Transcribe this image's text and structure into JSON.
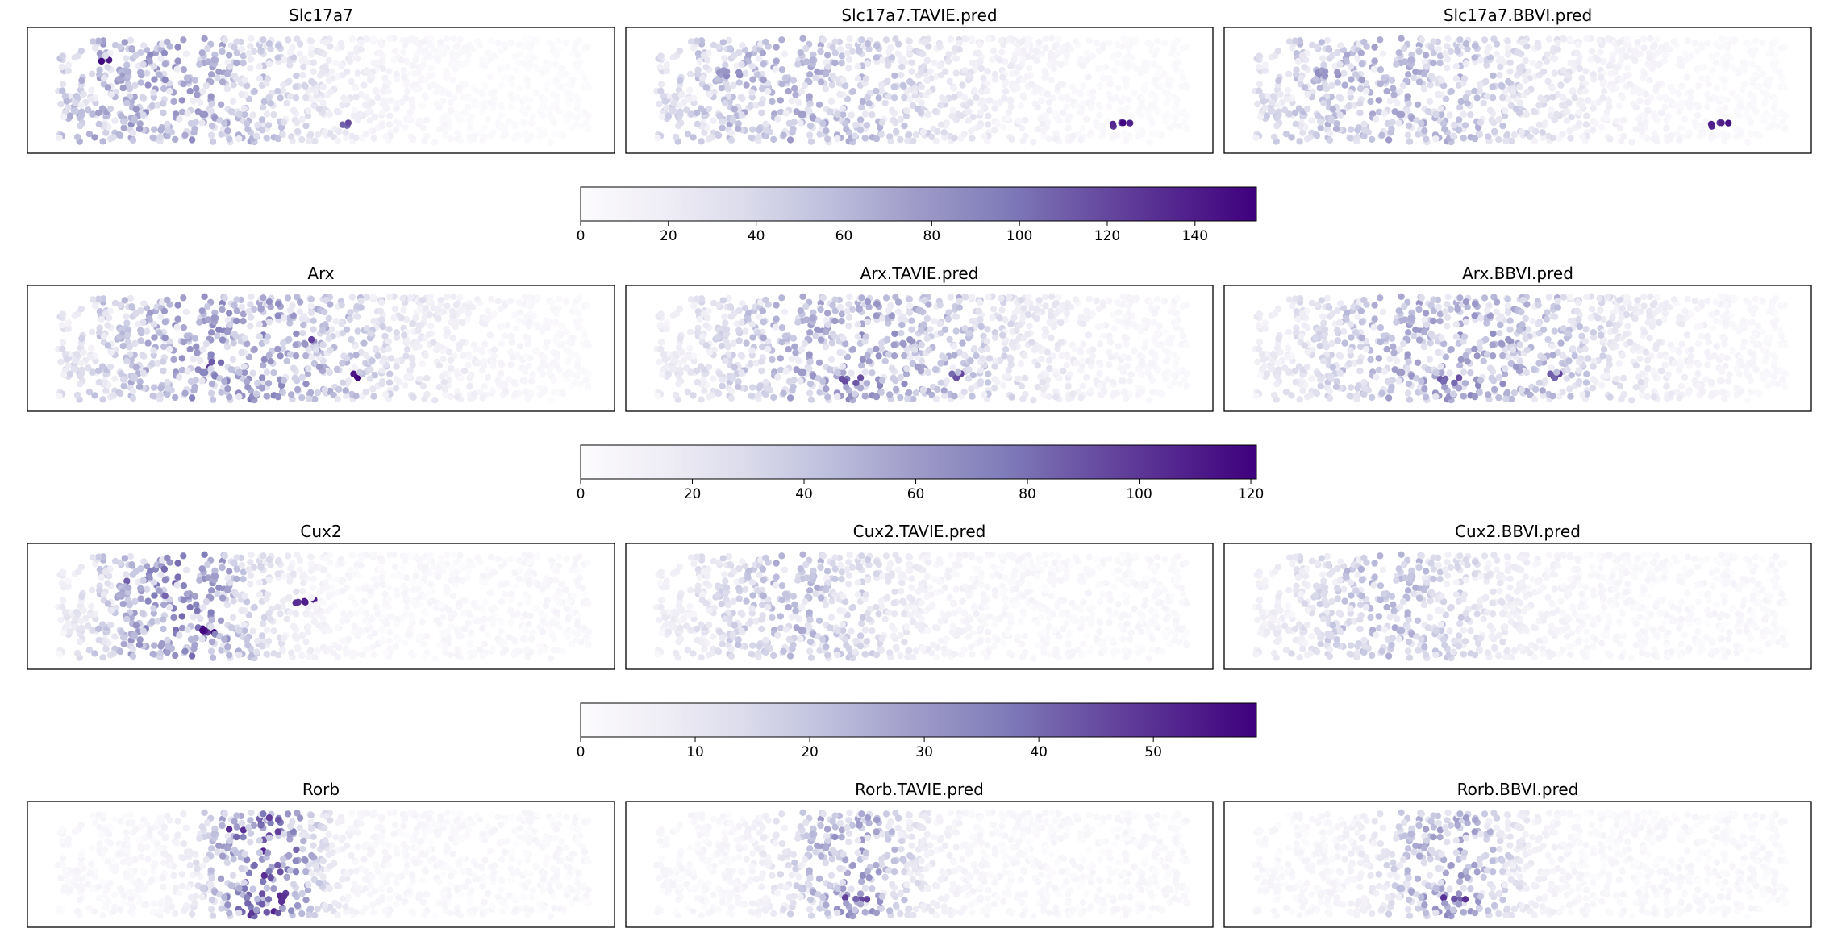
{
  "chart_data": {
    "type": "scatter",
    "colormap": "Purples",
    "colormap_stops": [
      "#fcfbfd",
      "#efedf5",
      "#dadaeb",
      "#bcbddc",
      "#9e9ac8",
      "#807dba",
      "#6a51a3",
      "#54278f",
      "#3f007d"
    ],
    "rows": [
      {
        "gene": "Slc17a7",
        "titles": [
          "Slc17a7",
          "Slc17a7.TAVIE.pred",
          "Slc17a7.BBVI.pred"
        ],
        "colorbar": {
          "vmin": 0,
          "vmax": 154,
          "ticks": [
            0,
            20,
            40,
            60,
            80,
            100,
            120,
            140
          ]
        },
        "expression_profile": {
          "observed": {
            "peak_x": 0.22,
            "width": 0.3,
            "amp": 65,
            "hotspots": [
              [
                0.14,
                0.25,
                150
              ],
              [
                0.55,
                0.8,
                120
              ],
              [
                0.95,
                0.95,
                70
              ]
            ]
          },
          "pred": {
            "peak_x": 0.28,
            "width": 0.34,
            "amp": 55,
            "hotspots": [
              [
                0.85,
                0.8,
                154
              ],
              [
                0.16,
                0.35,
                90
              ]
            ]
          }
        }
      },
      {
        "gene": "Arx",
        "titles": [
          "Arx",
          "Arx.TAVIE.pred",
          "Arx.BBVI.pred"
        ],
        "colorbar": {
          "vmin": 0,
          "vmax": 121,
          "ticks": [
            0,
            20,
            40,
            60,
            80,
            100,
            120
          ]
        },
        "expression_profile": {
          "observed": {
            "peak_x": 0.35,
            "width": 0.32,
            "amp": 55,
            "hotspots": [
              [
                0.54,
                0.75,
                121
              ],
              [
                0.47,
                0.4,
                110
              ],
              [
                0.31,
                0.65,
                100
              ]
            ]
          },
          "pred": {
            "peak_x": 0.4,
            "width": 0.32,
            "amp": 50,
            "hotspots": [
              [
                0.56,
                0.75,
                100
              ],
              [
                0.38,
                0.78,
                95
              ]
            ]
          }
        }
      },
      {
        "gene": "Cux2",
        "titles": [
          "Cux2",
          "Cux2.TAVIE.pred",
          "Cux2.BBVI.pred"
        ],
        "colorbar": {
          "vmin": 0,
          "vmax": 59,
          "ticks": [
            0,
            10,
            20,
            30,
            40,
            50
          ]
        },
        "expression_profile": {
          "observed": {
            "peak_x": 0.25,
            "width": 0.16,
            "amp": 30,
            "hotspots": [
              [
                0.3,
                0.72,
                59
              ],
              [
                0.47,
                0.45,
                55
              ],
              [
                0.16,
                0.25,
                50
              ]
            ]
          },
          "pred": {
            "peak_x": 0.28,
            "width": 0.2,
            "amp": 18,
            "hotspots": []
          }
        }
      },
      {
        "gene": "Rorb",
        "titles": [
          "Rorb",
          "Rorb.TAVIE.pred",
          "Rorb.BBVI.pred"
        ],
        "colorbar": null,
        "expression_profile": {
          "observed": {
            "peak_x": 0.4,
            "width": 0.1,
            "amp": 38,
            "hotspots": [
              [
                0.36,
                0.2,
                59
              ],
              [
                0.42,
                0.78,
                55
              ]
            ]
          },
          "pred": {
            "peak_x": 0.38,
            "width": 0.12,
            "amp": 25,
            "hotspots": [
              [
                0.38,
                0.8,
                50
              ]
            ]
          }
        }
      }
    ]
  }
}
